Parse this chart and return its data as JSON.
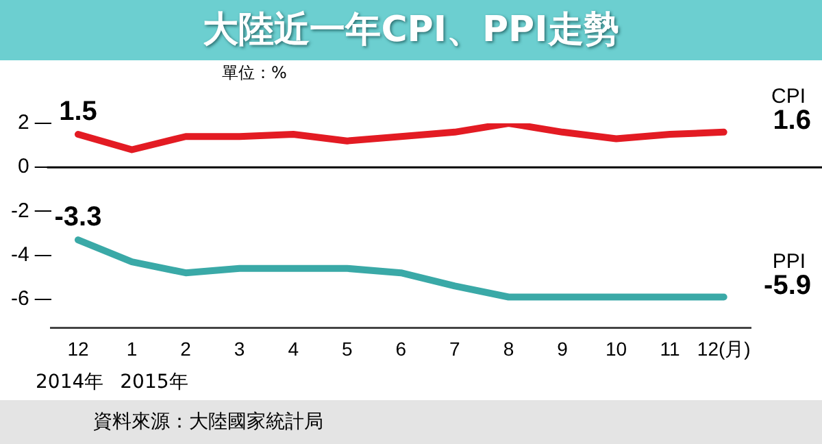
{
  "chart_data": {
    "type": "line",
    "title": "大陸近一年CPI、PPI走勢",
    "categories": [
      "12",
      "1",
      "2",
      "3",
      "4",
      "5",
      "6",
      "7",
      "8",
      "9",
      "10",
      "11",
      "12(月)"
    ],
    "series": [
      {
        "name": "CPI",
        "color": "#e31b23",
        "values": [
          1.5,
          0.8,
          1.4,
          1.4,
          1.5,
          1.2,
          1.4,
          1.6,
          2.0,
          1.6,
          1.3,
          1.5,
          1.6
        ],
        "value_labels": [
          "1.5",
          null,
          null,
          null,
          null,
          null,
          null,
          null,
          null,
          null,
          null,
          null,
          "1.6"
        ]
      },
      {
        "name": "PPI",
        "color": "#3aa9a7",
        "values": [
          -3.3,
          -4.3,
          -4.8,
          -4.6,
          -4.6,
          -4.6,
          -4.8,
          -5.4,
          -5.9,
          -5.9,
          -5.9,
          -5.9,
          -5.9
        ],
        "value_labels": [
          "-3.3",
          null,
          null,
          null,
          null,
          null,
          null,
          null,
          null,
          null,
          null,
          null,
          "-5.9"
        ]
      }
    ],
    "ylim": [
      -7.3,
      2
    ],
    "yticks": [
      2,
      0,
      -2,
      -4,
      -6
    ],
    "ref_lines": [
      {
        "axis": "y",
        "value": 0,
        "color": "#000000"
      }
    ],
    "annotations": [
      "單位：%",
      "2014年",
      "2015年",
      "資料來源：大陸國家統計局"
    ],
    "grid": false,
    "legend": false,
    "marker": "none",
    "line_style": "solid"
  }
}
